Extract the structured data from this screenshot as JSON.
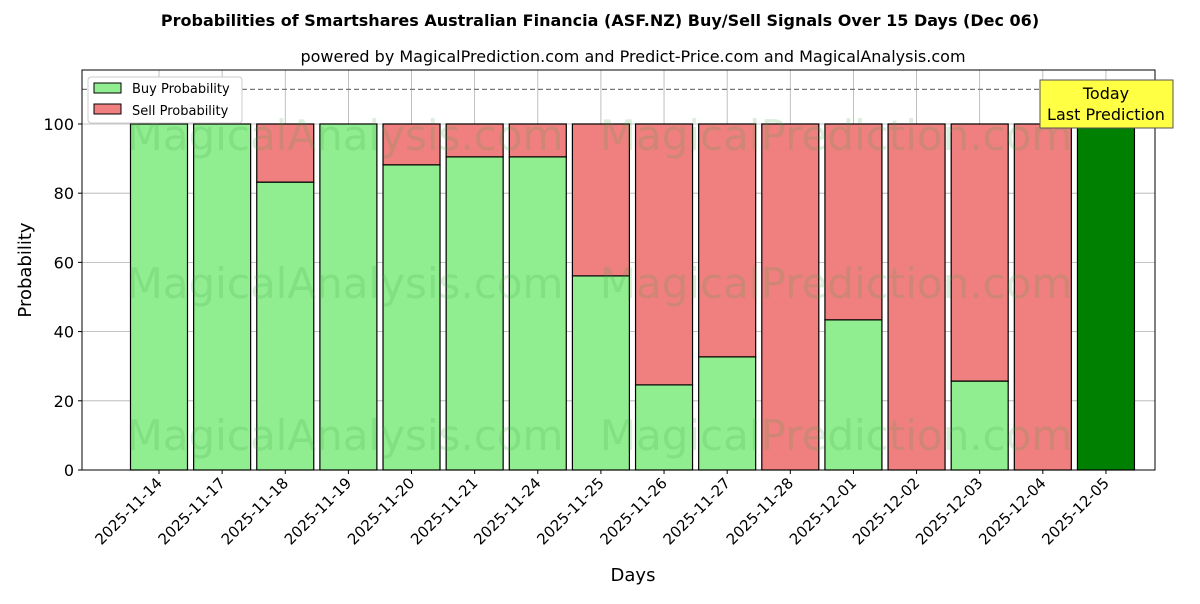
{
  "chart_data": {
    "type": "bar",
    "stacked": true,
    "title": "Probabilities of Smartshares Australian Financia (ASF.NZ) Buy/Sell Signals Over 15 Days (Dec 06)",
    "subtitle": "powered by MagicalPrediction.com and Predict-Price.com and MagicalAnalysis.com",
    "xlabel": "Days",
    "ylabel": "Probability",
    "ylim": [
      0,
      115.6
    ],
    "yticks": [
      0,
      20,
      40,
      60,
      80,
      100
    ],
    "grid": true,
    "reference_line": 110,
    "legend": {
      "placement": "top-left",
      "entries": [
        "Buy Probability",
        "Sell Probability"
      ]
    },
    "categories": [
      "2025-11-14",
      "2025-11-17",
      "2025-11-18",
      "2025-11-19",
      "2025-11-20",
      "2025-11-21",
      "2025-11-24",
      "2025-11-25",
      "2025-11-26",
      "2025-11-27",
      "2025-11-28",
      "2025-12-01",
      "2025-12-02",
      "2025-12-03",
      "2025-12-04",
      "2025-12-05"
    ],
    "series": [
      {
        "name": "Buy Probability",
        "color": "#90ee90",
        "values": [
          100,
          100,
          83.2,
          100,
          88.2,
          90.5,
          90.5,
          56.1,
          24.6,
          32.7,
          0,
          43.4,
          0,
          25.7,
          0,
          100
        ]
      },
      {
        "name": "Sell Probability",
        "color": "#f08080",
        "values": [
          0,
          0,
          16.8,
          0,
          11.8,
          9.5,
          9.5,
          43.9,
          75.4,
          67.3,
          100,
          56.6,
          100,
          74.3,
          100,
          0
        ]
      }
    ],
    "highlight": {
      "index": 15,
      "color": "#008000"
    },
    "annotation": {
      "line1": "Today",
      "line2": "Last Prediction",
      "bg": "#ffff44"
    },
    "watermarks": [
      "MagicalAnalysis.com",
      "MagicalPrediction.com"
    ]
  }
}
